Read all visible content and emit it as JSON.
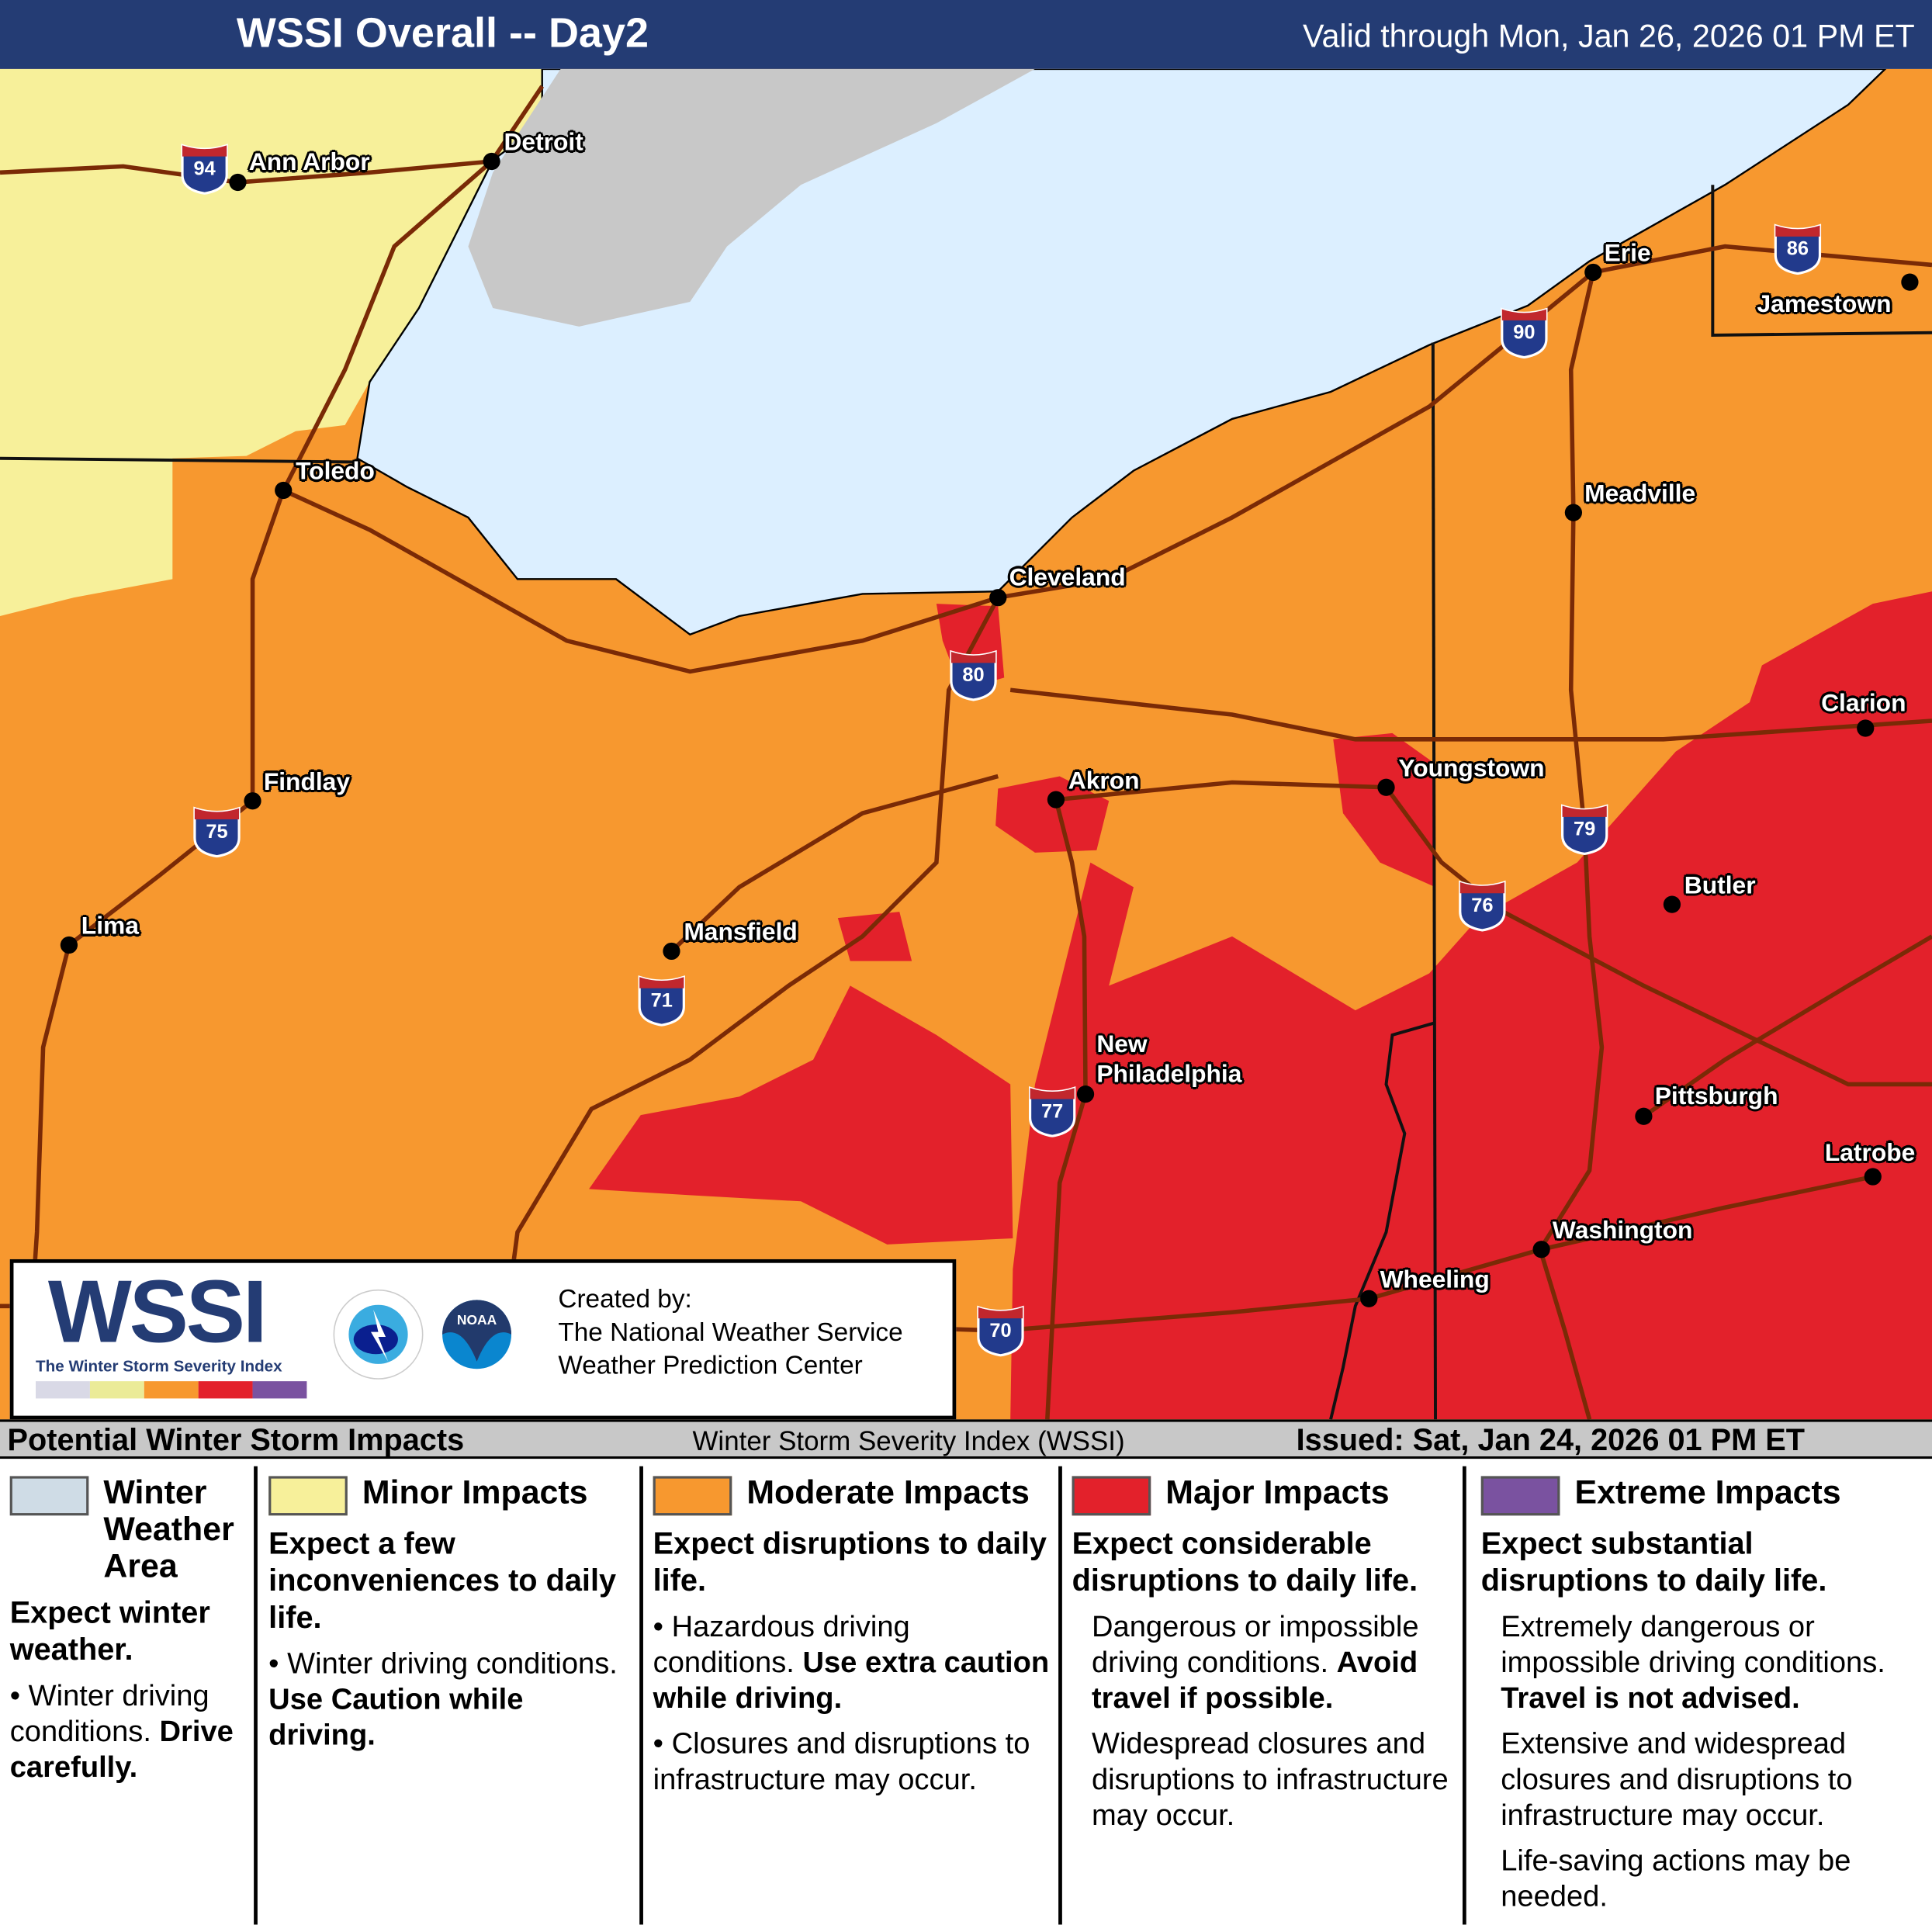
{
  "header": {
    "title": "WSSI Overall -- Day2",
    "valid": "Valid through Mon, Jan 26, 2026 01 PM ET"
  },
  "cities": [
    "Ann Arbor",
    "Detroit",
    "Toledo",
    "Cleveland",
    "Erie",
    "Jamestown",
    "Meadville",
    "Findlay",
    "Akron",
    "Youngstown",
    "Clarion",
    "Lima",
    "Mansfield",
    "Butler",
    "New",
    "Philadelphia",
    "Pittsburgh",
    "Latrobe",
    "Washington",
    "Wheeling"
  ],
  "interstates": [
    "94",
    "80",
    "75",
    "79",
    "76",
    "71",
    "77",
    "86",
    "90",
    "70"
  ],
  "colors": {
    "winter_weather_area": "#cfdce6",
    "minor": "#f7f09a",
    "moderate": "#f7982f",
    "major": "#e3212b",
    "extreme": "#7a52a0",
    "lake": "#dcefff",
    "no_data": "#c8c8c8",
    "header": "#243c74"
  },
  "credit": {
    "logo": "WSSI",
    "logo_sub": "The Winter Storm Severity Index",
    "nws_logo": "NATIONAL WEATHER SERVICE",
    "noaa_logo": "NOAA",
    "line1": "Created by:",
    "line2": "The National Weather Service",
    "line3": "Weather Prediction Center"
  },
  "subbar": {
    "left": "Potential Winter Storm Impacts",
    "middle": "Winter Storm Severity Index (WSSI)",
    "right": "Issued: Sat, Jan 24, 2026 01 PM ET"
  },
  "legend": [
    {
      "heading": "Winter Weather Area",
      "summary": "Expect winter weather.",
      "b1": "Winter driving conditions.",
      "b1_bold": "Drive carefully."
    },
    {
      "heading": "Minor Impacts",
      "summary": "Expect a few inconveniences to daily life.",
      "b1": "Winter driving conditions.",
      "b1_bold": "Use Caution while driving."
    },
    {
      "heading": "Moderate Impacts",
      "summary": "Expect disruptions to daily life.",
      "b1": "Hazardous driving conditions.",
      "b1_bold": "Use extra caution while driving.",
      "b2": "Closures and disruptions to infrastructure may occur."
    },
    {
      "heading": "Major Impacts",
      "summary": "Expect considerable disruptions to daily life.",
      "b1": "Dangerous or impossible driving conditions.",
      "b1_bold": "Avoid travel if possible.",
      "b2": "Widespread closures and disruptions to infrastructure may occur."
    },
    {
      "heading": "Extreme Impacts",
      "summary": "Expect substantial disruptions to daily life.",
      "b1": "Extremely dangerous or impossible driving conditions.",
      "b1_bold": "Travel is not advised.",
      "b2": "Extensive and widespread closures and disruptions to infrastructure may occur.",
      "b3": "Life-saving actions may be needed."
    }
  ]
}
